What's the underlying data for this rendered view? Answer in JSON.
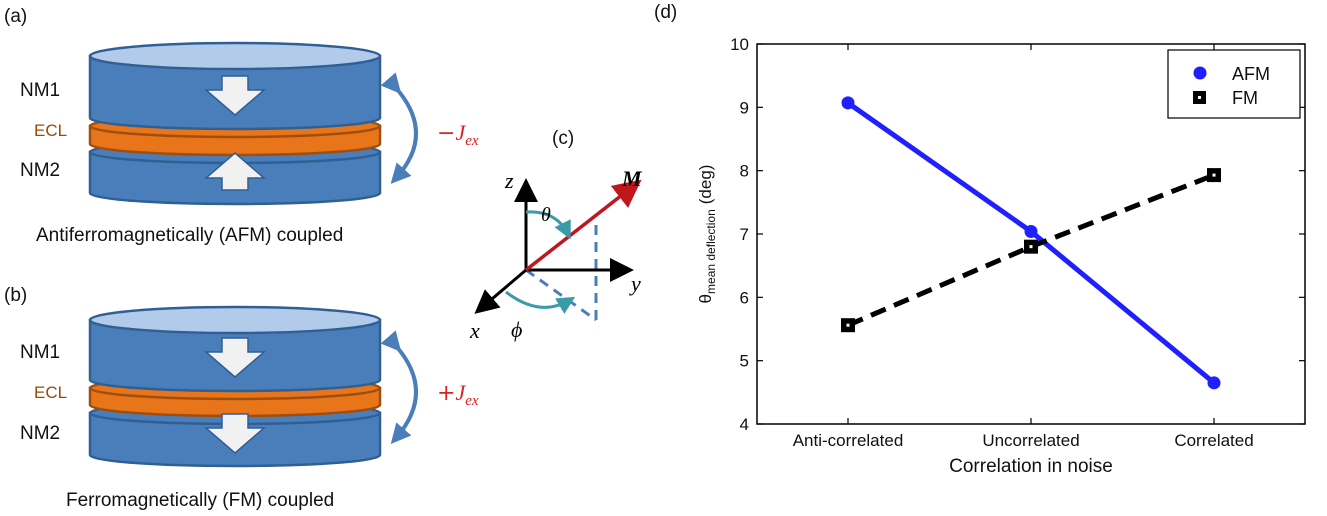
{
  "panel_labels": {
    "a": "(a)",
    "b": "(b)",
    "c": "(c)",
    "d": "(d)"
  },
  "panel_a": {
    "layers": [
      "NM1",
      "ECL",
      "NM2"
    ],
    "coupling_sign": "−",
    "coupling_symbol": "J",
    "coupling_sub": "ex",
    "caption": "Antiferromagnetically (AFM) coupled"
  },
  "panel_b": {
    "layers": [
      "NM1",
      "ECL",
      "NM2"
    ],
    "coupling_sign": "+",
    "coupling_symbol": "J",
    "coupling_sub": "ex",
    "caption": "Ferromagnetically (FM) coupled"
  },
  "panel_c": {
    "axis_z": "z",
    "axis_y": "y",
    "axis_x": "x",
    "vector": "M",
    "polar_angle": "θ",
    "azimuth_angle": "ϕ"
  },
  "colors": {
    "layer_blue": "#4a7ebb",
    "layer_blue_top": "#a9c4e6",
    "layer_orange": "#e8751a",
    "ecl_text": "#9b4a0a",
    "coupling_red": "#e02020",
    "afm_series": "#1f1fff",
    "fm_series": "#000000",
    "moment_red": "#c0161d",
    "angle_teal": "#3a9aa8"
  },
  "chart_data": {
    "type": "line",
    "categories": [
      "Anti-correlated",
      "Uncorrelated",
      "Correlated"
    ],
    "series": [
      {
        "name": "AFM",
        "values": [
          9.07,
          7.04,
          4.65
        ],
        "marker": "circle",
        "line": "solid"
      },
      {
        "name": "FM",
        "values": [
          5.56,
          6.8,
          7.93
        ],
        "marker": "square",
        "line": "dashed"
      }
    ],
    "xlabel": "Correlation in noise",
    "ylabel_main": "θ",
    "ylabel_sub": "mean deflection",
    "ylabel_unit": "(deg)",
    "ylim": [
      4,
      10
    ],
    "yticks": [
      "4",
      "5",
      "6",
      "7",
      "8",
      "9",
      "10"
    ],
    "legend_position": "top-right",
    "grid": false
  }
}
